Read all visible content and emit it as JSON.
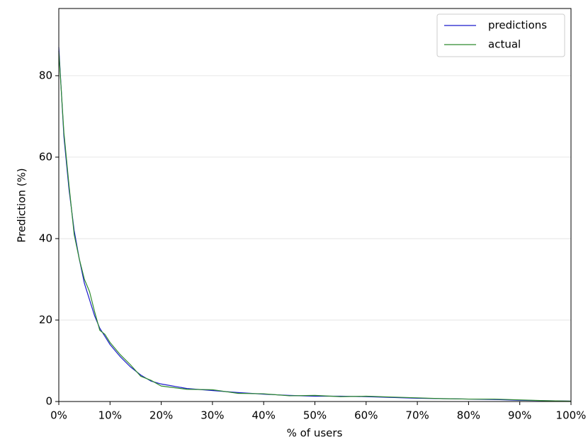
{
  "chart_data": {
    "type": "line",
    "xlabel": "% of users",
    "ylabel": "Prediction (%)",
    "x": [
      0,
      1,
      2,
      3,
      4,
      5,
      6,
      7,
      8,
      9,
      10,
      12,
      14,
      16,
      18,
      20,
      25,
      30,
      35,
      40,
      45,
      50,
      55,
      60,
      65,
      70,
      75,
      80,
      85,
      90,
      95,
      100
    ],
    "series": [
      {
        "name": "predictions",
        "color": "#1a1acc",
        "values": [
          87,
          65,
          52,
          42,
          35,
          29,
          25,
          21,
          18,
          16,
          14,
          11,
          8.5,
          6.5,
          5,
          4.3,
          3.2,
          2.7,
          2.2,
          1.8,
          1.5,
          1.3,
          1.3,
          1.2,
          1.0,
          0.8,
          0.7,
          0.6,
          0.5,
          0.3,
          0.2,
          0.1
        ]
      },
      {
        "name": "actual",
        "color": "#2e8b2e",
        "values": [
          86,
          66,
          53,
          41,
          35,
          30,
          27,
          22,
          17.5,
          16.5,
          14.5,
          11.5,
          9,
          6.2,
          5.2,
          3.8,
          3.0,
          2.9,
          2.0,
          1.9,
          1.4,
          1.5,
          1.2,
          1.3,
          1.1,
          0.9,
          0.7,
          0.6,
          0.6,
          0.4,
          0.2,
          0.1
        ]
      }
    ],
    "xlim": [
      0,
      100
    ],
    "xticks": [
      {
        "value": 0,
        "label": "0%"
      },
      {
        "value": 10,
        "label": "10%"
      },
      {
        "value": 20,
        "label": "20%"
      },
      {
        "value": 30,
        "label": "30%"
      },
      {
        "value": 40,
        "label": "40%"
      },
      {
        "value": 50,
        "label": "50%"
      },
      {
        "value": 60,
        "label": "60%"
      },
      {
        "value": 70,
        "label": "70%"
      },
      {
        "value": 80,
        "label": "80%"
      },
      {
        "value": 90,
        "label": "90%"
      },
      {
        "value": 100,
        "label": "100%"
      }
    ],
    "ylim": [
      0,
      96.5
    ],
    "yticks": [
      0,
      20,
      40,
      60,
      80
    ],
    "grid": true,
    "legend": "upper right"
  }
}
